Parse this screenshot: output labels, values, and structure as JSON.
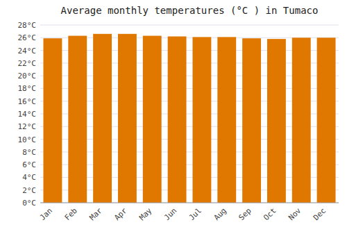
{
  "chart_data": {
    "type": "bar",
    "title": "Average monthly temperatures (°C ) in Tumaco",
    "categories": [
      "Jan",
      "Feb",
      "Mar",
      "Apr",
      "May",
      "Jun",
      "Jul",
      "Aug",
      "Sep",
      "Oct",
      "Nov",
      "Dec"
    ],
    "values": [
      25.9,
      26.3,
      26.6,
      26.6,
      26.3,
      26.2,
      26.1,
      26.1,
      25.9,
      25.8,
      26.0,
      26.0
    ],
    "color": "#E07800",
    "ylim": [
      0,
      28
    ],
    "yticks": [
      {
        "value": 0,
        "label": "0°C"
      },
      {
        "value": 2,
        "label": "2°C"
      },
      {
        "value": 4,
        "label": "4°C"
      },
      {
        "value": 6,
        "label": "6°C"
      },
      {
        "value": 8,
        "label": "8°C"
      },
      {
        "value": 10,
        "label": "10°C"
      },
      {
        "value": 12,
        "label": "12°C"
      },
      {
        "value": 14,
        "label": "14°C"
      },
      {
        "value": 16,
        "label": "16°C"
      },
      {
        "value": 18,
        "label": "18°C"
      },
      {
        "value": 20,
        "label": "20°C"
      },
      {
        "value": 22,
        "label": "22°C"
      },
      {
        "value": 24,
        "label": "24°C"
      },
      {
        "value": 26,
        "label": "26°C"
      },
      {
        "value": 28,
        "label": "28°C"
      }
    ],
    "grid": true
  }
}
